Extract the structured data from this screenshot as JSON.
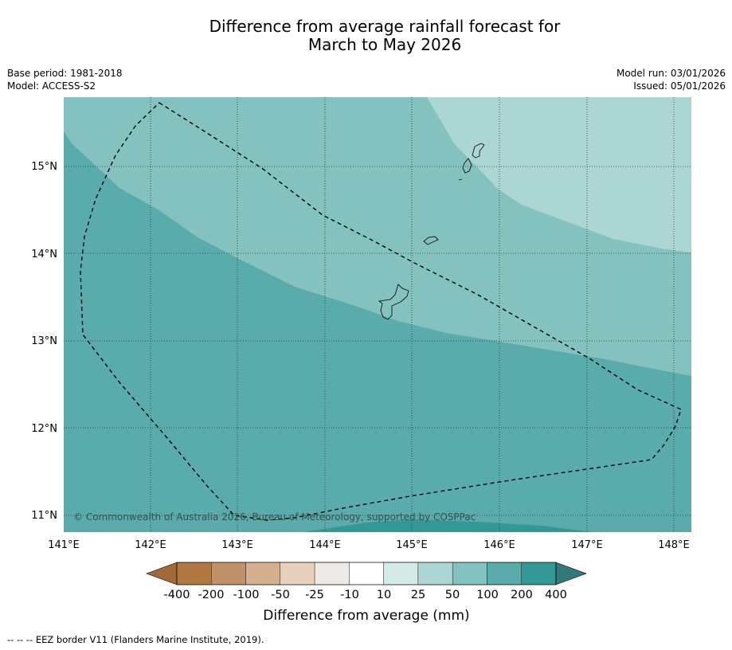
{
  "title": {
    "line1": "Difference from average rainfall forecast for",
    "line2": "March to May 2026"
  },
  "meta": {
    "base_period": "Base period: 1981-2018",
    "model": "Model: ACCESS-S2",
    "model_run": "Model run: 03/01/2026",
    "issued": "Issued: 05/01/2026"
  },
  "map": {
    "lon_labels": [
      "141°E",
      "142°E",
      "143°E",
      "144°E",
      "145°E",
      "146°E",
      "147°E",
      "148°E"
    ],
    "lat_labels": [
      "15°N",
      "14°N",
      "13°N",
      "12°N",
      "11°N"
    ],
    "copyright": "© Commonwealth of Australia 2026, Bureau of Meteorology, supported by COSPPac"
  },
  "legend": {
    "title": "Difference from average (mm)",
    "tick_labels": [
      "-400",
      "-200",
      "-100",
      "-50",
      "-25",
      "-10",
      "10",
      "25",
      "50",
      "100",
      "200",
      "400"
    ],
    "colors": {
      "neg_extend": "#9e6a3a",
      "bins": [
        "#b07840",
        "#c09068",
        "#d4b090",
        "#e8d0bc",
        "#eeeae6",
        "#ffffff",
        "#d4ece8",
        "#acd6d4",
        "#84c2bf",
        "#5aabab",
        "#349896"
      ],
      "pos_extend": "#357878"
    }
  },
  "footer": {
    "note": "--  --  -- EEZ border V11 (Flanders Marine Institute, 2019)."
  }
}
